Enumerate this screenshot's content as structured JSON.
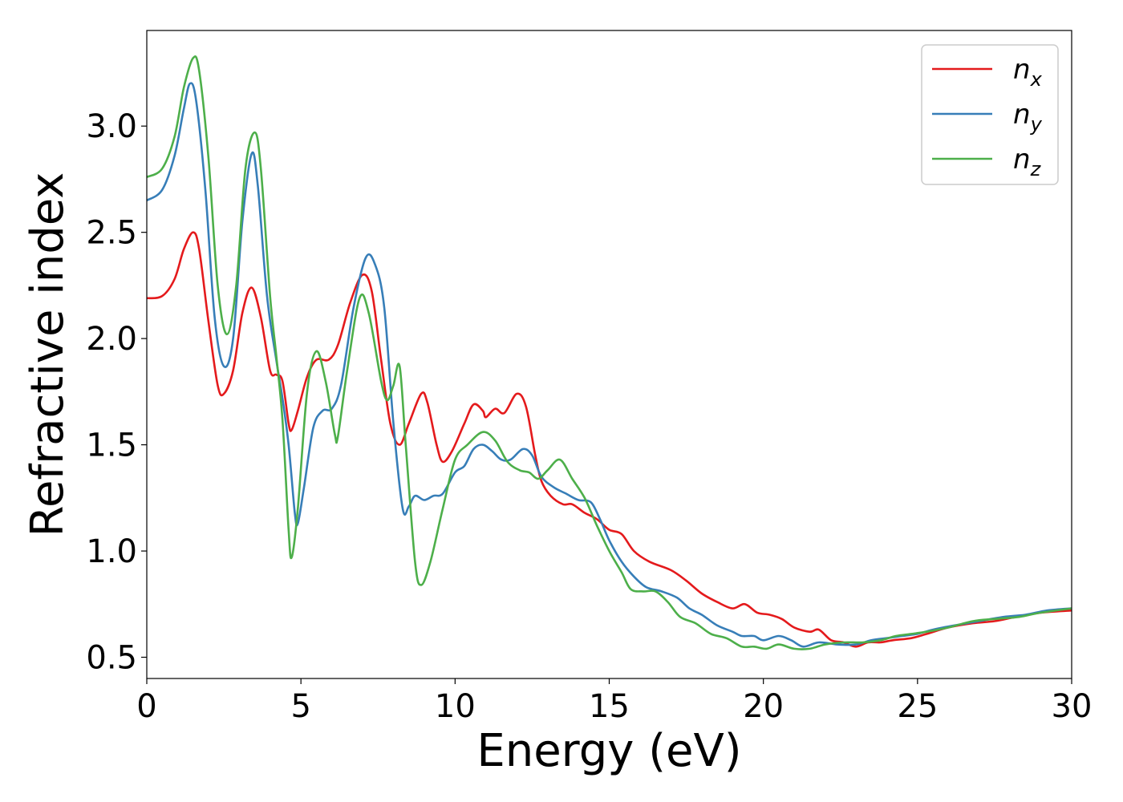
{
  "chart_data": {
    "type": "line",
    "title": "",
    "xlabel": "Energy (eV)",
    "ylabel": "Refractive index",
    "xlim": [
      0,
      30
    ],
    "ylim": [
      0.4,
      3.45
    ],
    "xticks": [
      0,
      5,
      10,
      15,
      20,
      25,
      30
    ],
    "yticks": [
      0.5,
      1.0,
      1.5,
      2.0,
      2.5,
      3.0
    ],
    "xtick_labels": [
      "0",
      "5",
      "10",
      "15",
      "20",
      "25",
      "30"
    ],
    "ytick_labels": [
      "0.5",
      "1.0",
      "1.5",
      "2.0",
      "2.5",
      "3.0"
    ],
    "grid": false,
    "legend_position": "top-right",
    "series": [
      {
        "name": "n_x",
        "label_base": "n",
        "label_sub": "x",
        "color": "#e41a1c",
        "points": [
          [
            0,
            2.19
          ],
          [
            0.5,
            2.2
          ],
          [
            0.9,
            2.28
          ],
          [
            1.2,
            2.42
          ],
          [
            1.5,
            2.5
          ],
          [
            1.7,
            2.42
          ],
          [
            2.0,
            2.08
          ],
          [
            2.3,
            1.78
          ],
          [
            2.5,
            1.74
          ],
          [
            2.8,
            1.85
          ],
          [
            3.1,
            2.12
          ],
          [
            3.4,
            2.24
          ],
          [
            3.7,
            2.1
          ],
          [
            4.0,
            1.85
          ],
          [
            4.2,
            1.83
          ],
          [
            4.4,
            1.8
          ],
          [
            4.6,
            1.6
          ],
          [
            4.7,
            1.57
          ],
          [
            4.9,
            1.66
          ],
          [
            5.2,
            1.82
          ],
          [
            5.5,
            1.9
          ],
          [
            5.9,
            1.9
          ],
          [
            6.2,
            1.97
          ],
          [
            6.6,
            2.17
          ],
          [
            7.0,
            2.3
          ],
          [
            7.3,
            2.22
          ],
          [
            7.6,
            1.9
          ],
          [
            7.9,
            1.6
          ],
          [
            8.2,
            1.5
          ],
          [
            8.5,
            1.6
          ],
          [
            8.9,
            1.74
          ],
          [
            9.1,
            1.7
          ],
          [
            9.4,
            1.5
          ],
          [
            9.6,
            1.42
          ],
          [
            9.9,
            1.47
          ],
          [
            10.3,
            1.6
          ],
          [
            10.6,
            1.69
          ],
          [
            10.9,
            1.66
          ],
          [
            11.0,
            1.63
          ],
          [
            11.3,
            1.67
          ],
          [
            11.6,
            1.65
          ],
          [
            12.0,
            1.74
          ],
          [
            12.3,
            1.68
          ],
          [
            12.6,
            1.45
          ],
          [
            12.8,
            1.33
          ],
          [
            13.1,
            1.26
          ],
          [
            13.5,
            1.22
          ],
          [
            13.8,
            1.22
          ],
          [
            14.2,
            1.18
          ],
          [
            14.6,
            1.15
          ],
          [
            15.0,
            1.1
          ],
          [
            15.4,
            1.08
          ],
          [
            15.8,
            1.0
          ],
          [
            16.3,
            0.95
          ],
          [
            17.0,
            0.91
          ],
          [
            17.5,
            0.86
          ],
          [
            18.0,
            0.8
          ],
          [
            18.5,
            0.76
          ],
          [
            19.0,
            0.73
          ],
          [
            19.4,
            0.75
          ],
          [
            19.8,
            0.71
          ],
          [
            20.2,
            0.7
          ],
          [
            20.6,
            0.68
          ],
          [
            21.0,
            0.64
          ],
          [
            21.5,
            0.62
          ],
          [
            21.8,
            0.63
          ],
          [
            22.2,
            0.58
          ],
          [
            22.6,
            0.57
          ],
          [
            23.0,
            0.55
          ],
          [
            23.4,
            0.57
          ],
          [
            23.8,
            0.57
          ],
          [
            24.2,
            0.58
          ],
          [
            24.8,
            0.59
          ],
          [
            25.3,
            0.61
          ],
          [
            26.0,
            0.64
          ],
          [
            26.8,
            0.66
          ],
          [
            27.5,
            0.67
          ],
          [
            28.2,
            0.69
          ],
          [
            29.0,
            0.71
          ],
          [
            30.0,
            0.72
          ]
        ]
      },
      {
        "name": "n_y",
        "label_base": "n",
        "label_sub": "y",
        "color": "#377eb8",
        "points": [
          [
            0,
            2.65
          ],
          [
            0.5,
            2.7
          ],
          [
            0.9,
            2.86
          ],
          [
            1.2,
            3.08
          ],
          [
            1.4,
            3.2
          ],
          [
            1.6,
            3.12
          ],
          [
            1.9,
            2.7
          ],
          [
            2.2,
            2.1
          ],
          [
            2.5,
            1.87
          ],
          [
            2.8,
            2.0
          ],
          [
            3.1,
            2.55
          ],
          [
            3.4,
            2.87
          ],
          [
            3.6,
            2.72
          ],
          [
            3.9,
            2.2
          ],
          [
            4.2,
            1.9
          ],
          [
            4.4,
            1.72
          ],
          [
            4.6,
            1.5
          ],
          [
            4.8,
            1.18
          ],
          [
            4.9,
            1.13
          ],
          [
            5.1,
            1.3
          ],
          [
            5.4,
            1.58
          ],
          [
            5.7,
            1.66
          ],
          [
            6.0,
            1.67
          ],
          [
            6.3,
            1.78
          ],
          [
            6.7,
            2.14
          ],
          [
            7.1,
            2.38
          ],
          [
            7.4,
            2.35
          ],
          [
            7.7,
            2.15
          ],
          [
            8.0,
            1.6
          ],
          [
            8.3,
            1.2
          ],
          [
            8.5,
            1.21
          ],
          [
            8.7,
            1.26
          ],
          [
            9.0,
            1.24
          ],
          [
            9.3,
            1.26
          ],
          [
            9.6,
            1.27
          ],
          [
            10.0,
            1.37
          ],
          [
            10.3,
            1.4
          ],
          [
            10.6,
            1.48
          ],
          [
            10.9,
            1.5
          ],
          [
            11.2,
            1.47
          ],
          [
            11.5,
            1.43
          ],
          [
            11.8,
            1.43
          ],
          [
            12.2,
            1.48
          ],
          [
            12.5,
            1.45
          ],
          [
            12.8,
            1.35
          ],
          [
            13.2,
            1.3
          ],
          [
            13.6,
            1.27
          ],
          [
            14.0,
            1.24
          ],
          [
            14.4,
            1.23
          ],
          [
            14.7,
            1.15
          ],
          [
            15.0,
            1.05
          ],
          [
            15.4,
            0.95
          ],
          [
            15.8,
            0.88
          ],
          [
            16.2,
            0.83
          ],
          [
            16.7,
            0.81
          ],
          [
            17.2,
            0.78
          ],
          [
            17.6,
            0.73
          ],
          [
            18.0,
            0.7
          ],
          [
            18.5,
            0.65
          ],
          [
            19.0,
            0.62
          ],
          [
            19.3,
            0.6
          ],
          [
            19.7,
            0.6
          ],
          [
            20.0,
            0.58
          ],
          [
            20.5,
            0.6
          ],
          [
            20.9,
            0.58
          ],
          [
            21.3,
            0.55
          ],
          [
            21.8,
            0.57
          ],
          [
            22.4,
            0.56
          ],
          [
            23.0,
            0.56
          ],
          [
            23.5,
            0.58
          ],
          [
            24.0,
            0.59
          ],
          [
            24.5,
            0.6
          ],
          [
            25.0,
            0.61
          ],
          [
            25.5,
            0.63
          ],
          [
            26.2,
            0.65
          ],
          [
            27.0,
            0.67
          ],
          [
            27.8,
            0.69
          ],
          [
            28.5,
            0.7
          ],
          [
            29.2,
            0.72
          ],
          [
            30.0,
            0.73
          ]
        ]
      },
      {
        "name": "n_z",
        "label_base": "n",
        "label_sub": "z",
        "color": "#4daf4a",
        "points": [
          [
            0,
            2.76
          ],
          [
            0.5,
            2.8
          ],
          [
            0.9,
            2.95
          ],
          [
            1.2,
            3.18
          ],
          [
            1.5,
            3.32
          ],
          [
            1.7,
            3.26
          ],
          [
            2.0,
            2.85
          ],
          [
            2.3,
            2.25
          ],
          [
            2.6,
            2.02
          ],
          [
            2.9,
            2.25
          ],
          [
            3.2,
            2.8
          ],
          [
            3.5,
            2.97
          ],
          [
            3.7,
            2.8
          ],
          [
            4.0,
            2.2
          ],
          [
            4.2,
            1.92
          ],
          [
            4.4,
            1.62
          ],
          [
            4.6,
            1.1
          ],
          [
            4.7,
            0.97
          ],
          [
            4.9,
            1.2
          ],
          [
            5.2,
            1.75
          ],
          [
            5.5,
            1.94
          ],
          [
            5.8,
            1.8
          ],
          [
            6.1,
            1.55
          ],
          [
            6.2,
            1.54
          ],
          [
            6.5,
            1.85
          ],
          [
            6.9,
            2.19
          ],
          [
            7.2,
            2.12
          ],
          [
            7.6,
            1.8
          ],
          [
            7.8,
            1.71
          ],
          [
            8.0,
            1.78
          ],
          [
            8.2,
            1.87
          ],
          [
            8.4,
            1.5
          ],
          [
            8.7,
            0.95
          ],
          [
            8.9,
            0.84
          ],
          [
            9.2,
            0.95
          ],
          [
            9.6,
            1.2
          ],
          [
            10.0,
            1.43
          ],
          [
            10.4,
            1.5
          ],
          [
            10.9,
            1.56
          ],
          [
            11.3,
            1.52
          ],
          [
            11.7,
            1.42
          ],
          [
            12.1,
            1.38
          ],
          [
            12.4,
            1.37
          ],
          [
            12.7,
            1.34
          ],
          [
            13.0,
            1.38
          ],
          [
            13.4,
            1.43
          ],
          [
            13.8,
            1.34
          ],
          [
            14.2,
            1.25
          ],
          [
            14.6,
            1.12
          ],
          [
            15.0,
            1.0
          ],
          [
            15.4,
            0.9
          ],
          [
            15.7,
            0.82
          ],
          [
            16.1,
            0.81
          ],
          [
            16.5,
            0.81
          ],
          [
            16.9,
            0.76
          ],
          [
            17.3,
            0.69
          ],
          [
            17.8,
            0.66
          ],
          [
            18.3,
            0.61
          ],
          [
            18.8,
            0.59
          ],
          [
            19.3,
            0.55
          ],
          [
            19.7,
            0.55
          ],
          [
            20.1,
            0.54
          ],
          [
            20.5,
            0.56
          ],
          [
            21.0,
            0.54
          ],
          [
            21.5,
            0.54
          ],
          [
            22.0,
            0.56
          ],
          [
            22.6,
            0.57
          ],
          [
            23.2,
            0.57
          ],
          [
            23.8,
            0.58
          ],
          [
            24.3,
            0.6
          ],
          [
            24.8,
            0.61
          ],
          [
            25.3,
            0.62
          ],
          [
            26.0,
            0.64
          ],
          [
            26.8,
            0.67
          ],
          [
            27.5,
            0.68
          ],
          [
            28.3,
            0.69
          ],
          [
            29.0,
            0.71
          ],
          [
            30.0,
            0.73
          ]
        ]
      }
    ]
  }
}
